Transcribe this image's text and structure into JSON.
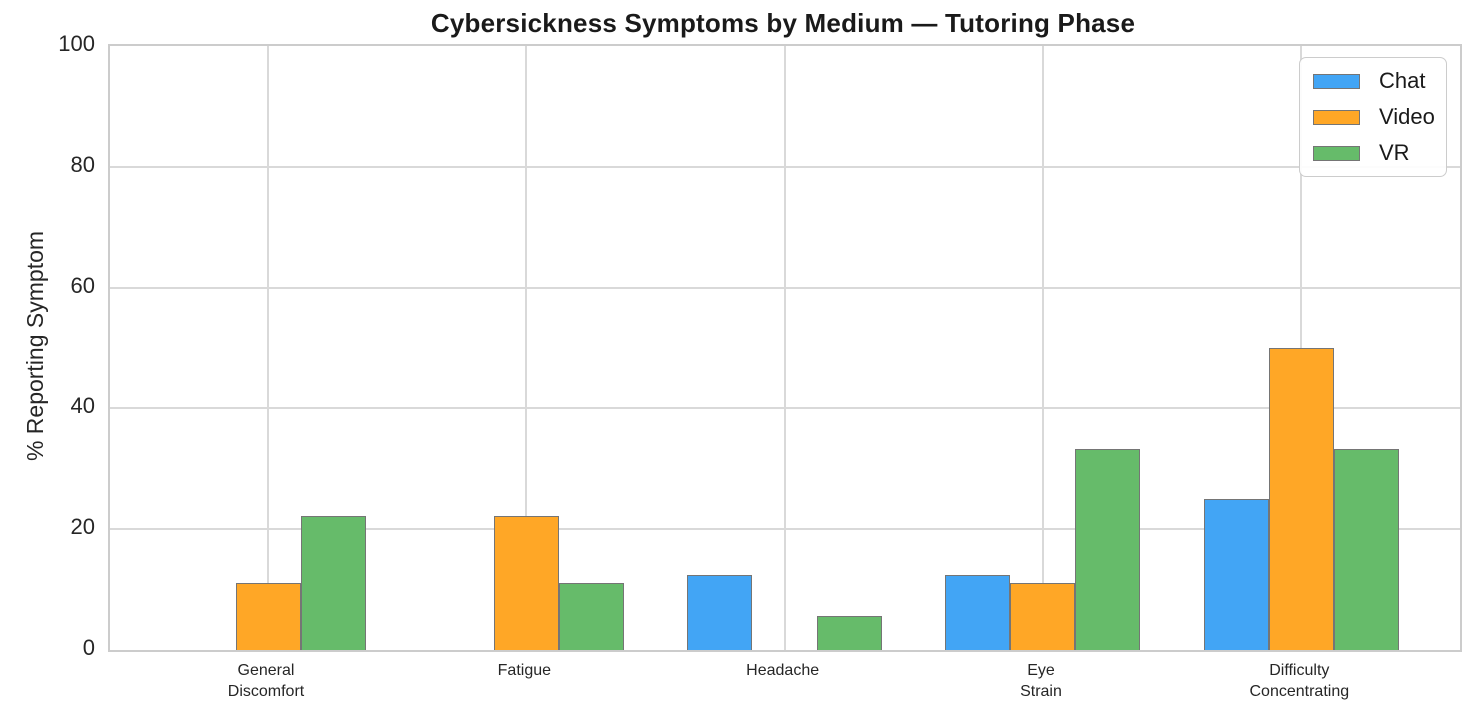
{
  "chart_data": {
    "type": "bar",
    "title": "Cybersickness Symptoms by Medium — Tutoring Phase",
    "xlabel": "",
    "ylabel": "% Reporting Symptom",
    "categories": [
      "General\nDiscomfort",
      "Fatigue",
      "Headache",
      "Eye\nStrain",
      "Difficulty\nConcentrating"
    ],
    "series": [
      {
        "name": "Chat",
        "color": "#42A5F5",
        "values": [
          0,
          0,
          12.5,
          12.5,
          25
        ]
      },
      {
        "name": "Video",
        "color": "#FFA726",
        "values": [
          11.1,
          22.2,
          0,
          11.1,
          50
        ]
      },
      {
        "name": "VR",
        "color": "#66BB6A",
        "values": [
          22.2,
          11.1,
          5.6,
          33.3,
          33.3
        ]
      }
    ],
    "ylim": [
      0,
      100
    ],
    "yticks": [
      0,
      20,
      40,
      60,
      80,
      100
    ],
    "grid": true,
    "legend_position": "upper right",
    "bar_edge_color": "#757575",
    "grid_color": "#D9D9D9",
    "spine_color": "#CCCCCC",
    "text_color": "#262626",
    "background_color": "#FFFFFF"
  }
}
